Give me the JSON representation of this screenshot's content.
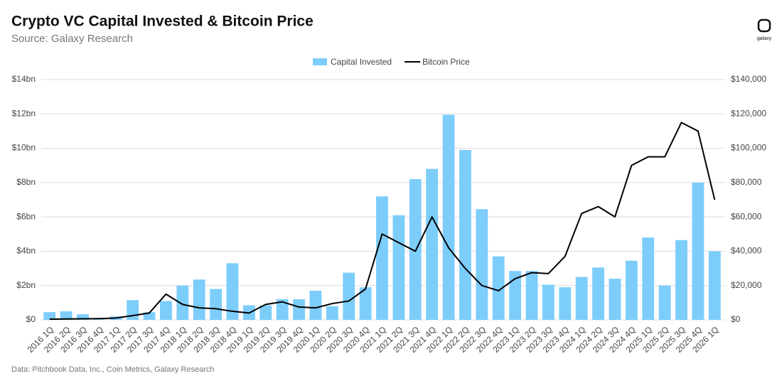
{
  "chart_data": {
    "type": "bar",
    "title": "Crypto VC Capital Invested & Bitcoin Price",
    "subtitle": "Source: Galaxy Research",
    "source_note": "Data: Pitchbook Data, Inc., Coin Metrics, Galaxy Research",
    "logo_text": "galaxy",
    "categories": [
      "2016 1Q",
      "2016 2Q",
      "2016 3Q",
      "2016 4Q",
      "2017 1Q",
      "2017 2Q",
      "2017 3Q",
      "2017 4Q",
      "2018 1Q",
      "2018 2Q",
      "2018 3Q",
      "2018 4Q",
      "2019 1Q",
      "2019 2Q",
      "2019 3Q",
      "2019 4Q",
      "2020 1Q",
      "2020 2Q",
      "2020 3Q",
      "2020 4Q",
      "2021 1Q",
      "2021 2Q",
      "2021 3Q",
      "2021 4Q",
      "2022 1Q",
      "2022 2Q",
      "2022 3Q",
      "2022 4Q",
      "2023 1Q",
      "2023 2Q",
      "2023 3Q",
      "2023 4Q",
      "2024 1Q",
      "2024 2Q",
      "2024 3Q",
      "2024 4Q",
      "2025 1Q",
      "2025 2Q",
      "2025 3Q",
      "2025 4Q",
      "2026 1Q"
    ],
    "series": [
      {
        "name": "Capital Invested",
        "type": "bar",
        "color": "#7dcdfb",
        "values": [
          0.45,
          0.5,
          0.33,
          0.1,
          0.2,
          1.15,
          0.45,
          1.1,
          2.0,
          2.35,
          1.8,
          3.3,
          0.85,
          0.85,
          1.2,
          1.2,
          1.7,
          0.8,
          2.75,
          1.9,
          7.2,
          6.1,
          8.2,
          8.8,
          11.95,
          9.9,
          6.45,
          3.7,
          2.85,
          2.85,
          2.05,
          1.9,
          2.5,
          3.05,
          2.4,
          3.45,
          4.8,
          2.0,
          4.65,
          8.0,
          4.0
        ]
      },
      {
        "name": "Bitcoin Price",
        "type": "line",
        "color": "#000000",
        "axis": "y2",
        "values": [
          400,
          500,
          600,
          750,
          1100,
          2500,
          4000,
          15000,
          9000,
          7000,
          6500,
          5000,
          4000,
          9000,
          10500,
          7500,
          7000,
          9500,
          11000,
          18000,
          50000,
          45000,
          40000,
          60000,
          42000,
          30000,
          20000,
          17000,
          24000,
          27500,
          27000,
          37000,
          62000,
          66000,
          60000,
          90000,
          95000,
          95000,
          115000,
          110000,
          70000
        ]
      }
    ],
    "ylim": [
      0,
      14
    ],
    "yticks": [
      {
        "value": 0,
        "label": "$0"
      },
      {
        "value": 2,
        "label": "$2bn"
      },
      {
        "value": 4,
        "label": "$4bn"
      },
      {
        "value": 6,
        "label": "$6bn"
      },
      {
        "value": 8,
        "label": "$8bn"
      },
      {
        "value": 10,
        "label": "$10bn"
      },
      {
        "value": 12,
        "label": "$12bn"
      },
      {
        "value": 14,
        "label": "$14bn"
      }
    ],
    "y2lim": [
      0,
      140000
    ],
    "y2ticks": [
      {
        "value": 0,
        "label": "$0"
      },
      {
        "value": 20000,
        "label": "$20,000"
      },
      {
        "value": 40000,
        "label": "$40,000"
      },
      {
        "value": 60000,
        "label": "$60,000"
      },
      {
        "value": 80000,
        "label": "$80,000"
      },
      {
        "value": 100000,
        "label": "$100,000"
      },
      {
        "value": 120000,
        "label": "$120,000"
      },
      {
        "value": 140000,
        "label": "$140,000"
      }
    ],
    "grid": true,
    "legend": "top"
  }
}
